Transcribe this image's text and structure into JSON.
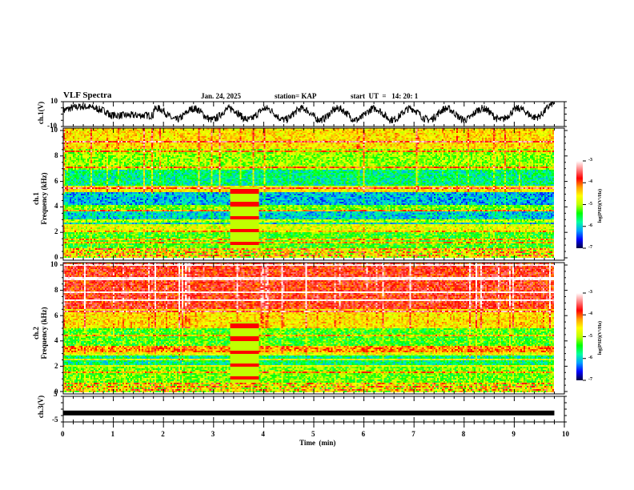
{
  "header": {
    "title": "VLF Spectra",
    "date": "Jan. 24, 2025",
    "station": "station= KAP",
    "start": "start  UT  =   14: 20: 1"
  },
  "colors": {
    "axis": "#000000",
    "trace": "#000000",
    "colormap": [
      "#000040",
      "#0000ff",
      "#00a0ff",
      "#00ffa0",
      "#00ff00",
      "#c0ff00",
      "#ffff00",
      "#ffa000",
      "#ff0000",
      "#ff8080",
      "#ffffff"
    ]
  },
  "chart_data": [
    {
      "type": "line",
      "name": "ch1-waveform",
      "ylabel": "ch.1(V)",
      "ylim": [
        -10,
        10
      ],
      "yticks": [
        "10",
        "-10"
      ],
      "xlim": [
        0,
        10
      ],
      "description_values": {
        "x_min": 0,
        "x_max": 9.8,
        "y_range": [
          -9,
          9
        ]
      }
    },
    {
      "type": "heatmap",
      "name": "ch1-spectrogram",
      "ylabel_top": "ch.1",
      "ylabel": "Frequency  (kHz)",
      "ylim": [
        0,
        10
      ],
      "yticks": [
        "0",
        "2",
        "4",
        "6",
        "8",
        "10"
      ],
      "xlim": [
        0,
        9.8
      ],
      "colorbar": {
        "label": "log(PSD)(V²/Hz)",
        "range": [
          -7,
          -3
        ],
        "ticks": [
          "-3",
          "-4",
          "-5",
          "-6",
          "-7"
        ]
      },
      "interference_window_min": [
        3.3,
        3.9
      ]
    },
    {
      "type": "heatmap",
      "name": "ch2-spectrogram",
      "ylabel_top": "ch.2",
      "ylabel": "Frequency  (kHz)",
      "ylim": [
        0,
        10
      ],
      "yticks": [
        "0",
        "2",
        "4",
        "6",
        "8",
        "10"
      ],
      "xlim": [
        0,
        9.8
      ],
      "colorbar": {
        "label": "log(PSD)(V²/Hz)",
        "range": [
          -7,
          -3
        ],
        "ticks": [
          "-3",
          "-4",
          "-5",
          "-6",
          "-7"
        ]
      },
      "interference_window_min": [
        3.3,
        3.9
      ]
    },
    {
      "type": "line",
      "name": "ch3-waveform",
      "ylabel": "ch.3(V)",
      "ylim": [
        -5,
        5
      ],
      "yticks": [
        "5",
        "-5"
      ],
      "level": -1.5,
      "xlim": [
        0,
        9.8
      ]
    }
  ],
  "xaxis": {
    "label": "Time  (min)",
    "ticks": [
      "0",
      "1",
      "2",
      "3",
      "4",
      "5",
      "6",
      "7",
      "8",
      "9",
      "10"
    ],
    "range": [
      0,
      10
    ]
  }
}
